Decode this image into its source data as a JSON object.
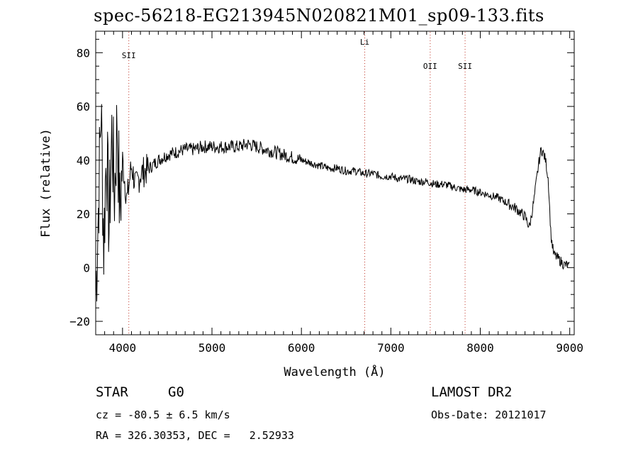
{
  "chart_data": {
    "type": "line",
    "title": "spec-56218-EG213945N020821M01_sp09-133.fits",
    "xlabel": "Wavelength (Å)",
    "ylabel": "Flux (relative)",
    "xlim": [
      3700,
      9050
    ],
    "ylim": [
      -25,
      88
    ],
    "x_ticks": [
      4000,
      5000,
      6000,
      7000,
      8000,
      9000
    ],
    "y_ticks": [
      -20,
      0,
      20,
      40,
      60,
      80
    ],
    "grid": false,
    "legend": "none",
    "line_color": "#000000",
    "marker_color": "#c0392b",
    "lines": [
      {
        "label": "SII",
        "x": 4070,
        "label_y": 78
      },
      {
        "label": "Li",
        "x": 6708,
        "label_y": 83
      },
      {
        "label": "OII",
        "x": 7440,
        "label_y": 74
      },
      {
        "label": "SII",
        "x": 7830,
        "label_y": 74
      }
    ],
    "series": [
      {
        "x": [
          3700,
          3730,
          3760,
          3790,
          3820,
          3850,
          3880,
          3910,
          3940,
          3970,
          4000,
          4050,
          4100,
          4150,
          4200,
          4300,
          4400,
          4500,
          4600,
          4700,
          4800,
          4900,
          5000,
          5100,
          5200,
          5300,
          5400,
          5500,
          5600,
          5700,
          5800,
          5900,
          6000,
          6100,
          6200,
          6300,
          6400,
          6500,
          6600,
          6700,
          6800,
          6900,
          7000,
          7100,
          7200,
          7300,
          7400,
          7500,
          7600,
          7700,
          7800,
          7900,
          8000,
          8100,
          8200,
          8300,
          8400,
          8500,
          8550,
          8600,
          8650,
          8680,
          8700,
          8730,
          8760,
          8790,
          8820,
          8850,
          8880,
          8910,
          8940,
          8970,
          9000
        ],
        "y": [
          -10,
          22,
          60,
          8,
          45,
          15,
          50,
          28,
          55,
          20,
          40,
          25,
          38,
          30,
          35,
          37,
          40,
          42,
          43,
          44,
          44,
          45,
          45,
          45,
          45,
          45,
          46,
          45,
          44,
          43,
          42,
          41,
          40,
          39,
          38,
          37,
          37,
          36,
          36,
          35,
          35,
          34,
          34,
          33,
          33,
          32,
          32,
          31,
          31,
          30,
          29,
          29,
          28,
          27,
          26,
          24,
          22,
          19,
          15,
          25,
          38,
          44,
          43,
          40,
          33,
          12,
          5,
          4,
          3,
          2,
          1,
          1,
          0
        ]
      }
    ],
    "info": {
      "class": "STAR",
      "subclass": "G0",
      "cz": "cz = -80.5 ± 6.5 km/s",
      "radec": "RA = 326.30353, DEC =   2.52933",
      "survey": "LAMOST DR2",
      "obsdate": "Obs-Date: 20121017"
    }
  }
}
